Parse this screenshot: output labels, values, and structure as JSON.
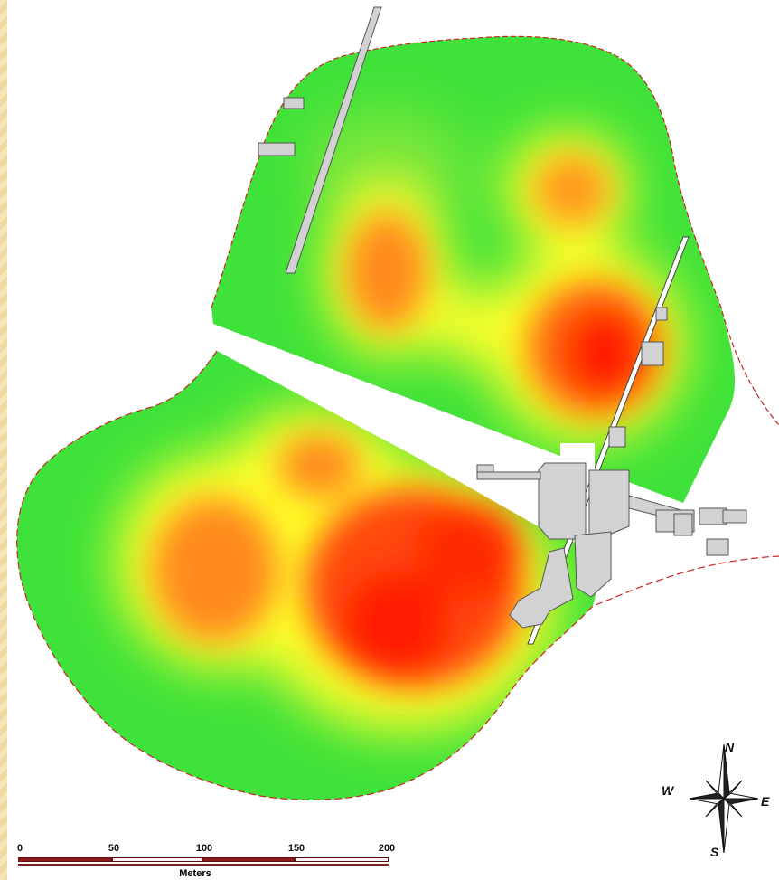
{
  "map": {
    "scale_bar": {
      "ticks": [
        "0",
        "50",
        "100",
        "150",
        "200"
      ],
      "units": "Meters"
    },
    "north_arrow": {
      "labels": {
        "n": "N",
        "e": "E",
        "s": "S",
        "w": "W"
      }
    },
    "colors": {
      "low": "#3fe23a",
      "mid": "#ffff2a",
      "high": "#ff1a00",
      "buildings": "#d2d2d2",
      "boundary": "#cc2222",
      "frame": "#f3e3b0"
    },
    "legend_semantics": "heat-density-gradient"
  }
}
